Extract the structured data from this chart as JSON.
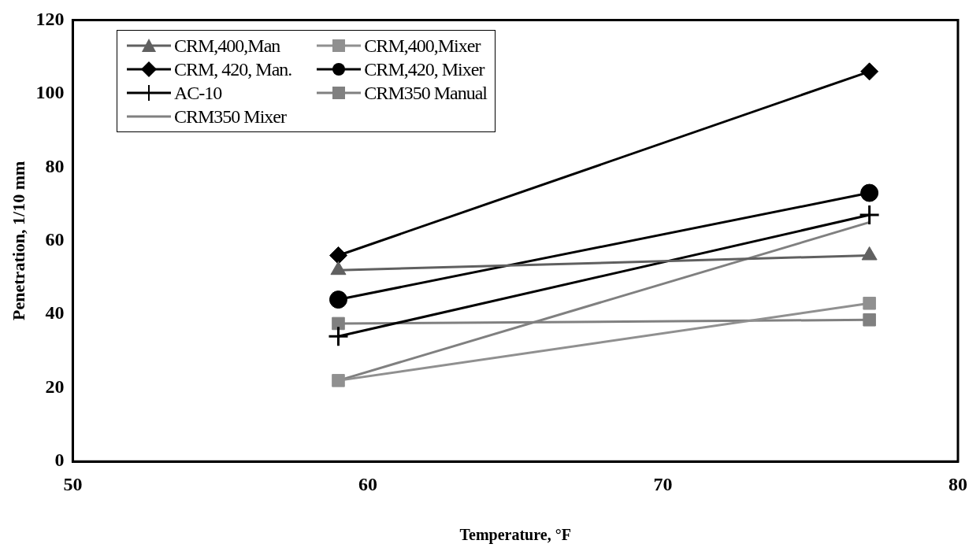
{
  "chart_data": {
    "type": "line",
    "xlabel": "Temperature, °F",
    "ylabel": "Penetration, 1/10 mm",
    "x": [
      59,
      77
    ],
    "xlim": [
      50,
      80
    ],
    "xticks": [
      50,
      60,
      70,
      80
    ],
    "ylim": [
      0,
      120
    ],
    "yticks": [
      0,
      20,
      40,
      60,
      80,
      100,
      120
    ],
    "grid": false,
    "legend": "top left",
    "line_style": "solid",
    "series": [
      {
        "name": "CRM,400,Man",
        "color": "#606060",
        "marker": "triangle",
        "values": [
          52,
          56
        ]
      },
      {
        "name": "CRM,400,Mixer",
        "color": "#909090",
        "marker": "square",
        "values": [
          22,
          43
        ]
      },
      {
        "name": "CRM, 420, Man.",
        "color": "#000000",
        "marker": "diamond",
        "values": [
          56,
          106
        ]
      },
      {
        "name": "CRM,420, Mixer",
        "color": "#000000",
        "marker": "circle",
        "values": [
          44,
          73
        ]
      },
      {
        "name": "AC-10",
        "color": "#000000",
        "marker": "cross",
        "values": [
          34,
          67
        ]
      },
      {
        "name": "CRM350 Manual",
        "color": "#808080",
        "marker": "square",
        "values": [
          37.5,
          38.5
        ]
      },
      {
        "name": "CRM350 Mixer",
        "color": "#808080",
        "marker": "none",
        "values": [
          22,
          65
        ]
      }
    ]
  }
}
